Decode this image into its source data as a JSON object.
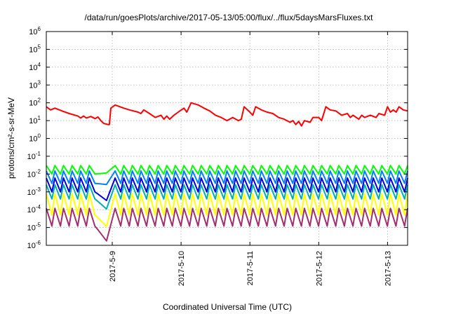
{
  "chart_data": {
    "type": "line",
    "title": "/data/run/goesPlots/archive/2017-05-13/05:00/flux/../flux/5daysMarsFluxes.txt",
    "xlabel": "Coordinated Universal Time (UTC)",
    "ylabel": "protons/cm²-s-sr-MeV",
    "y_scale": "log",
    "ylim": [
      1e-06,
      1000000.0
    ],
    "y_tick_exponents": [
      -6,
      -5,
      -4,
      -3,
      -2,
      -1,
      0,
      1,
      2,
      3,
      4,
      5,
      6
    ],
    "xlim": [
      "2017-05-08T01:00",
      "2017-05-13T07:00"
    ],
    "x_ticks": [
      "2017-5-9",
      "2017-5-10",
      "2017-5-11",
      "2017-5-12",
      "2017-5-13"
    ],
    "grid": true,
    "series": [
      {
        "color": "#ff0000",
        "points": [
          [
            "2017-05-08T01:00",
            60
          ],
          [
            "2017-05-08T02:30",
            40
          ],
          [
            "2017-05-08T04:00",
            50
          ],
          [
            "2017-05-08T06:30",
            35
          ],
          [
            "2017-05-08T09:00",
            25
          ],
          [
            "2017-05-08T12:00",
            18
          ],
          [
            "2017-05-08T13:00",
            14
          ],
          [
            "2017-05-08T14:00",
            18
          ],
          [
            "2017-05-08T15:00",
            14
          ],
          [
            "2017-05-08T16:30",
            17
          ],
          [
            "2017-05-08T18:00",
            13
          ],
          [
            "2017-05-08T19:00",
            16
          ],
          [
            "2017-05-08T20:00",
            10
          ],
          [
            "2017-05-08T21:00",
            7
          ],
          [
            "2017-05-08T22:30",
            6
          ],
          [
            "2017-05-08T23:00",
            6
          ],
          [
            "2017-05-08T23:30",
            50
          ],
          [
            "2017-05-09T01:00",
            75
          ],
          [
            "2017-05-09T04:00",
            50
          ],
          [
            "2017-05-09T06:00",
            40
          ],
          [
            "2017-05-09T09:00",
            30
          ],
          [
            "2017-05-09T10:00",
            25
          ],
          [
            "2017-05-09T11:00",
            40
          ],
          [
            "2017-05-09T13:00",
            25
          ],
          [
            "2017-05-09T15:00",
            15
          ],
          [
            "2017-05-09T17:00",
            20
          ],
          [
            "2017-05-09T18:00",
            12
          ],
          [
            "2017-05-09T19:00",
            18
          ],
          [
            "2017-05-09T20:00",
            12
          ],
          [
            "2017-05-09T21:30",
            20
          ],
          [
            "2017-05-09T23:00",
            30
          ],
          [
            "2017-05-10T01:00",
            50
          ],
          [
            "2017-05-10T02:00",
            30
          ],
          [
            "2017-05-10T03:30",
            100
          ],
          [
            "2017-05-10T06:00",
            75
          ],
          [
            "2017-05-10T08:00",
            50
          ],
          [
            "2017-05-10T10:00",
            35
          ],
          [
            "2017-05-10T12:00",
            20
          ],
          [
            "2017-05-10T14:00",
            15
          ],
          [
            "2017-05-10T16:00",
            10
          ],
          [
            "2017-05-10T18:00",
            15
          ],
          [
            "2017-05-10T20:00",
            10
          ],
          [
            "2017-05-10T21:00",
            12
          ],
          [
            "2017-05-10T22:00",
            60
          ],
          [
            "2017-05-11T00:00",
            30
          ],
          [
            "2017-05-11T01:00",
            20
          ],
          [
            "2017-05-11T02:00",
            60
          ],
          [
            "2017-05-11T04:00",
            40
          ],
          [
            "2017-05-11T06:00",
            30
          ],
          [
            "2017-05-11T08:00",
            25
          ],
          [
            "2017-05-11T10:00",
            15
          ],
          [
            "2017-05-11T12:00",
            12
          ],
          [
            "2017-05-11T14:00",
            8
          ],
          [
            "2017-05-11T15:00",
            10
          ],
          [
            "2017-05-11T16:00",
            6
          ],
          [
            "2017-05-11T17:00",
            9
          ],
          [
            "2017-05-11T18:00",
            5
          ],
          [
            "2017-05-11T19:00",
            10
          ],
          [
            "2017-05-11T21:00",
            8
          ],
          [
            "2017-05-11T22:00",
            15
          ],
          [
            "2017-05-12T00:00",
            15
          ],
          [
            "2017-05-12T01:00",
            10
          ],
          [
            "2017-05-12T02:30",
            60
          ],
          [
            "2017-05-12T04:00",
            40
          ],
          [
            "2017-05-12T06:00",
            35
          ],
          [
            "2017-05-12T08:00",
            20
          ],
          [
            "2017-05-12T10:00",
            25
          ],
          [
            "2017-05-12T11:00",
            15
          ],
          [
            "2017-05-12T12:00",
            20
          ],
          [
            "2017-05-12T14:00",
            12
          ],
          [
            "2017-05-12T15:00",
            20
          ],
          [
            "2017-05-12T16:00",
            15
          ],
          [
            "2017-05-12T18:00",
            20
          ],
          [
            "2017-05-12T20:00",
            15
          ],
          [
            "2017-05-12T21:00",
            25
          ],
          [
            "2017-05-12T23:00",
            20
          ],
          [
            "2017-05-13T00:00",
            60
          ],
          [
            "2017-05-13T01:00",
            30
          ],
          [
            "2017-05-13T02:00",
            40
          ],
          [
            "2017-05-13T03:00",
            30
          ],
          [
            "2017-05-13T04:00",
            60
          ],
          [
            "2017-05-13T05:30",
            40
          ],
          [
            "2017-05-13T07:00",
            35
          ]
        ]
      },
      {
        "color": "#00ff00",
        "base": 0.03,
        "dip": 0.01,
        "gap_min": 0.012
      },
      {
        "color": "#0080ff",
        "base": 0.015,
        "dip": 0.003,
        "gap_min": 0.0025
      },
      {
        "color": "#0000e0",
        "base": 0.006,
        "dip": 0.001,
        "gap_min": 0.00025
      },
      {
        "color": "#00b0b0",
        "base": 0.0025,
        "dip": 0.0004,
        "gap_min": 8e-05
      },
      {
        "color": "#ffff00",
        "base": 0.0008,
        "dip": 5e-05,
        "gap_min": 8e-06
      },
      {
        "color": "#a03070",
        "base": 0.00012,
        "dip": 1.2e-05,
        "gap_min": 1.1e-06
      }
    ]
  }
}
